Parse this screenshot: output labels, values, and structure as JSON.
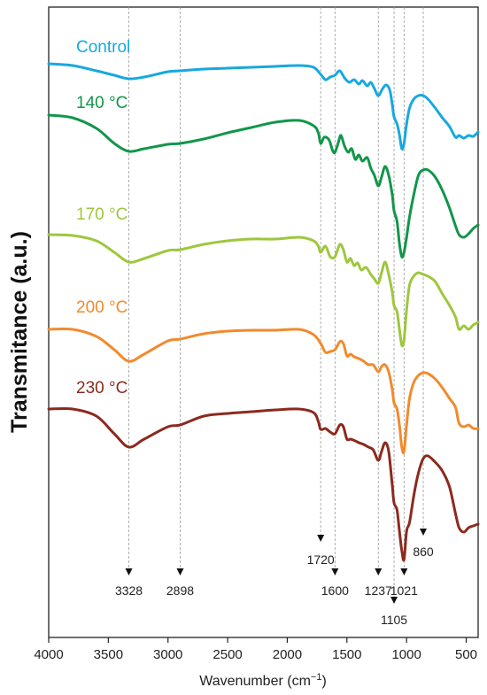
{
  "chart_data": {
    "type": "line",
    "title": "",
    "xlabel": "Wavenumber (cm",
    "xlabel_sup": "−1",
    "xlabel_close": ")",
    "ylabel": "Transmitance (a.u.)",
    "xlim": [
      4000,
      400
    ],
    "x_reversed": true,
    "y_ticks_shown": false,
    "grid": false,
    "legend": "inline-labels-left",
    "x_ticks": [
      4000,
      3500,
      3000,
      2500,
      2000,
      1500,
      1000,
      500
    ],
    "series": [
      {
        "name": "Control",
        "color": "#17a8e0",
        "points": [
          [
            4000,
            72
          ],
          [
            3800,
            74
          ],
          [
            3600,
            80
          ],
          [
            3450,
            85
          ],
          [
            3328,
            89
          ],
          [
            3200,
            87
          ],
          [
            3000,
            81
          ],
          [
            2898,
            80
          ],
          [
            2700,
            78
          ],
          [
            2500,
            77
          ],
          [
            2300,
            76
          ],
          [
            2100,
            75
          ],
          [
            1900,
            74
          ],
          [
            1780,
            76
          ],
          [
            1720,
            84
          ],
          [
            1680,
            90
          ],
          [
            1640,
            87
          ],
          [
            1600,
            85
          ],
          [
            1560,
            80
          ],
          [
            1520,
            88
          ],
          [
            1480,
            93
          ],
          [
            1440,
            90
          ],
          [
            1400,
            95
          ],
          [
            1370,
            91
          ],
          [
            1330,
            97
          ],
          [
            1300,
            93
          ],
          [
            1270,
            100
          ],
          [
            1237,
            108
          ],
          [
            1200,
            100
          ],
          [
            1170,
            96
          ],
          [
            1140,
            102
          ],
          [
            1120,
            118
          ],
          [
            1105,
            132
          ],
          [
            1080,
            140
          ],
          [
            1060,
            152
          ],
          [
            1040,
            168
          ],
          [
            1021,
            162
          ],
          [
            1000,
            140
          ],
          [
            975,
            122
          ],
          [
            940,
            112
          ],
          [
            900,
            108
          ],
          [
            860,
            108
          ],
          [
            820,
            112
          ],
          [
            760,
            122
          ],
          [
            700,
            133
          ],
          [
            640,
            143
          ],
          [
            590,
            155
          ],
          [
            560,
            153
          ],
          [
            520,
            156
          ],
          [
            480,
            153
          ],
          [
            440,
            154
          ],
          [
            400,
            149
          ]
        ]
      },
      {
        "name": "140 °C",
        "color": "#12964a",
        "points": [
          [
            4000,
            130
          ],
          [
            3800,
            133
          ],
          [
            3600,
            145
          ],
          [
            3450,
            162
          ],
          [
            3328,
            171
          ],
          [
            3200,
            168
          ],
          [
            3000,
            163
          ],
          [
            2898,
            162
          ],
          [
            2700,
            157
          ],
          [
            2500,
            150
          ],
          [
            2300,
            144
          ],
          [
            2100,
            138
          ],
          [
            1900,
            136
          ],
          [
            1780,
            142
          ],
          [
            1740,
            150
          ],
          [
            1720,
            162
          ],
          [
            1690,
            155
          ],
          [
            1650,
            158
          ],
          [
            1620,
            170
          ],
          [
            1600,
            172
          ],
          [
            1570,
            160
          ],
          [
            1550,
            153
          ],
          [
            1520,
            165
          ],
          [
            1490,
            172
          ],
          [
            1460,
            168
          ],
          [
            1430,
            180
          ],
          [
            1400,
            175
          ],
          [
            1370,
            182
          ],
          [
            1330,
            178
          ],
          [
            1300,
            190
          ],
          [
            1270,
            198
          ],
          [
            1237,
            210
          ],
          [
            1210,
            200
          ],
          [
            1180,
            188
          ],
          [
            1150,
            198
          ],
          [
            1120,
            220
          ],
          [
            1105,
            238
          ],
          [
            1080,
            250
          ],
          [
            1060,
            275
          ],
          [
            1040,
            290
          ],
          [
            1021,
            285
          ],
          [
            1000,
            268
          ],
          [
            975,
            245
          ],
          [
            940,
            220
          ],
          [
            900,
            198
          ],
          [
            860,
            192
          ],
          [
            820,
            192
          ],
          [
            760,
            200
          ],
          [
            700,
            215
          ],
          [
            640,
            235
          ],
          [
            590,
            255
          ],
          [
            560,
            265
          ],
          [
            520,
            268
          ],
          [
            480,
            264
          ],
          [
            440,
            258
          ],
          [
            400,
            254
          ]
        ]
      },
      {
        "name": "170 °C",
        "color": "#9ec73d",
        "points": [
          [
            4000,
            265
          ],
          [
            3800,
            266
          ],
          [
            3600,
            272
          ],
          [
            3450,
            285
          ],
          [
            3328,
            296
          ],
          [
            3200,
            292
          ],
          [
            3000,
            283
          ],
          [
            2898,
            282
          ],
          [
            2700,
            276
          ],
          [
            2500,
            272
          ],
          [
            2300,
            270
          ],
          [
            2100,
            270
          ],
          [
            1900,
            268
          ],
          [
            1780,
            272
          ],
          [
            1740,
            278
          ],
          [
            1720,
            285
          ],
          [
            1680,
            278
          ],
          [
            1640,
            290
          ],
          [
            1600,
            290
          ],
          [
            1560,
            276
          ],
          [
            1530,
            282
          ],
          [
            1500,
            296
          ],
          [
            1470,
            292
          ],
          [
            1440,
            300
          ],
          [
            1410,
            297
          ],
          [
            1380,
            305
          ],
          [
            1340,
            302
          ],
          [
            1300,
            310
          ],
          [
            1270,
            315
          ],
          [
            1237,
            320
          ],
          [
            1210,
            308
          ],
          [
            1180,
            296
          ],
          [
            1150,
            310
          ],
          [
            1120,
            330
          ],
          [
            1105,
            345
          ],
          [
            1080,
            352
          ],
          [
            1060,
            372
          ],
          [
            1040,
            390
          ],
          [
            1021,
            384
          ],
          [
            1000,
            350
          ],
          [
            975,
            322
          ],
          [
            940,
            312
          ],
          [
            900,
            308
          ],
          [
            860,
            310
          ],
          [
            820,
            312
          ],
          [
            760,
            318
          ],
          [
            700,
            332
          ],
          [
            640,
            345
          ],
          [
            590,
            358
          ],
          [
            560,
            372
          ],
          [
            520,
            368
          ],
          [
            480,
            372
          ],
          [
            440,
            367
          ],
          [
            400,
            364
          ]
        ]
      },
      {
        "name": "200 °C",
        "color": "#f28a2c",
        "points": [
          [
            4000,
            372
          ],
          [
            3800,
            372
          ],
          [
            3600,
            380
          ],
          [
            3450,
            395
          ],
          [
            3328,
            408
          ],
          [
            3200,
            400
          ],
          [
            3000,
            385
          ],
          [
            2898,
            383
          ],
          [
            2700,
            377
          ],
          [
            2500,
            374
          ],
          [
            2300,
            373
          ],
          [
            2100,
            373
          ],
          [
            1900,
            372
          ],
          [
            1780,
            378
          ],
          [
            1720,
            388
          ],
          [
            1680,
            398
          ],
          [
            1640,
            397
          ],
          [
            1600,
            395
          ],
          [
            1560,
            386
          ],
          [
            1530,
            388
          ],
          [
            1500,
            402
          ],
          [
            1470,
            400
          ],
          [
            1440,
            403
          ],
          [
            1400,
            405
          ],
          [
            1360,
            408
          ],
          [
            1320,
            412
          ],
          [
            1280,
            412
          ],
          [
            1237,
            420
          ],
          [
            1210,
            414
          ],
          [
            1180,
            412
          ],
          [
            1150,
            420
          ],
          [
            1120,
            440
          ],
          [
            1105,
            455
          ],
          [
            1080,
            462
          ],
          [
            1060,
            480
          ],
          [
            1040,
            505
          ],
          [
            1021,
            510
          ],
          [
            1000,
            480
          ],
          [
            975,
            450
          ],
          [
            940,
            432
          ],
          [
            900,
            424
          ],
          [
            860,
            421
          ],
          [
            820,
            422
          ],
          [
            760,
            428
          ],
          [
            700,
            438
          ],
          [
            640,
            450
          ],
          [
            590,
            460
          ],
          [
            560,
            478
          ],
          [
            520,
            482
          ],
          [
            480,
            480
          ],
          [
            440,
            484
          ],
          [
            400,
            484
          ]
        ]
      },
      {
        "name": "230 °C",
        "color": "#8b2a1e",
        "points": [
          [
            4000,
            462
          ],
          [
            3800,
            462
          ],
          [
            3600,
            470
          ],
          [
            3450,
            490
          ],
          [
            3328,
            505
          ],
          [
            3200,
            496
          ],
          [
            3000,
            482
          ],
          [
            2898,
            480
          ],
          [
            2700,
            470
          ],
          [
            2500,
            467
          ],
          [
            2300,
            465
          ],
          [
            2100,
            463
          ],
          [
            1900,
            462
          ],
          [
            1780,
            466
          ],
          [
            1740,
            476
          ],
          [
            1720,
            485
          ],
          [
            1680,
            484
          ],
          [
            1640,
            488
          ],
          [
            1600,
            490
          ],
          [
            1560,
            480
          ],
          [
            1530,
            482
          ],
          [
            1500,
            496
          ],
          [
            1470,
            496
          ],
          [
            1430,
            498
          ],
          [
            1400,
            500
          ],
          [
            1360,
            502
          ],
          [
            1320,
            505
          ],
          [
            1280,
            508
          ],
          [
            1237,
            520
          ],
          [
            1210,
            510
          ],
          [
            1180,
            500
          ],
          [
            1150,
            510
          ],
          [
            1120,
            548
          ],
          [
            1105,
            568
          ],
          [
            1080,
            576
          ],
          [
            1060,
            600
          ],
          [
            1040,
            622
          ],
          [
            1021,
            632
          ],
          [
            1000,
            600
          ],
          [
            975,
            590
          ],
          [
            940,
            560
          ],
          [
            900,
            534
          ],
          [
            860,
            518
          ],
          [
            820,
            515
          ],
          [
            760,
            522
          ],
          [
            700,
            532
          ],
          [
            640,
            550
          ],
          [
            590,
            580
          ],
          [
            560,
            596
          ],
          [
            520,
            601
          ],
          [
            480,
            596
          ],
          [
            440,
            594
          ],
          [
            400,
            592
          ]
        ]
      }
    ],
    "peaks": [
      {
        "label": "3328",
        "wavenumber": 3328
      },
      {
        "label": "2898",
        "wavenumber": 2898
      },
      {
        "label": "1720",
        "wavenumber": 1720
      },
      {
        "label": "1600",
        "wavenumber": 1600
      },
      {
        "label": "1237",
        "wavenumber": 1237
      },
      {
        "label": "1105",
        "wavenumber": 1105
      },
      {
        "label": "1021",
        "wavenumber": 1021
      },
      {
        "label": "860",
        "wavenumber": 860
      }
    ]
  }
}
